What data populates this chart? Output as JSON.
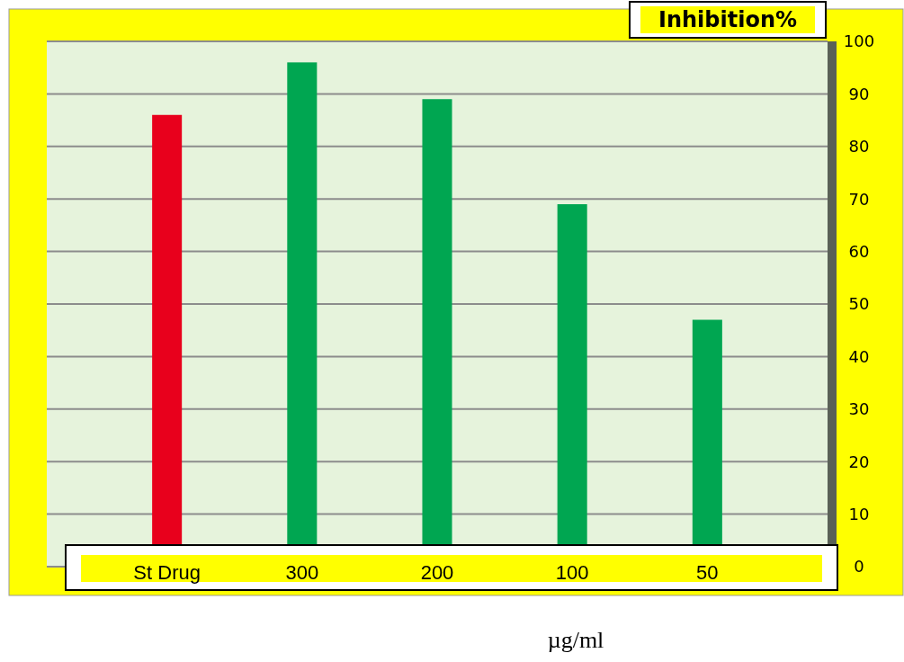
{
  "chart_data": {
    "type": "bar",
    "title": "Inhibition%",
    "xlabel": "µg/ml",
    "categories": [
      "St Drug",
      "300",
      "200",
      "100",
      "50"
    ],
    "values": [
      86,
      96,
      89,
      69,
      47
    ],
    "colors": [
      "#e8001c",
      "#00a651",
      "#00a651",
      "#00a651",
      "#00a651"
    ],
    "ylim": [
      0,
      100
    ],
    "yticks": [
      0,
      10,
      20,
      30,
      40,
      50,
      60,
      70,
      80,
      90,
      100
    ],
    "grid": "y"
  }
}
